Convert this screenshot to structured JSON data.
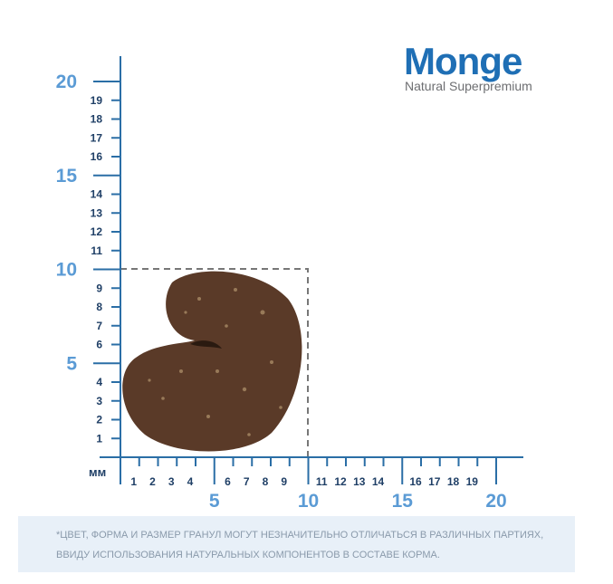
{
  "logo": {
    "brand": "Monge",
    "tagline": "Natural Superpremium"
  },
  "ruler": {
    "unit": "мм",
    "x_minor": [
      1,
      2,
      3,
      4,
      6,
      7,
      8,
      9,
      11,
      12,
      13,
      14,
      16,
      17,
      18,
      19
    ],
    "x_major": [
      5,
      10,
      15,
      20
    ],
    "y_minor": [
      1,
      2,
      3,
      4,
      6,
      7,
      8,
      9,
      11,
      12,
      13,
      14,
      16,
      17,
      18,
      19
    ],
    "y_major": [
      5,
      10,
      15,
      20
    ]
  },
  "note": {
    "lines": [
      "*ЦВЕТ, ФОРМА И РАЗМЕР ГРАНУЛ МОГУТ НЕЗНАЧИТЕЛЬНО ОТЛИЧАТЬСЯ В РАЗЛИЧНЫХ ПАРТИЯХ,",
      "ВВИДУ ИСПОЛЬЗОВАНИЯ НАТУРАЛЬНЫХ КОМПОНЕНТОВ В СОСТАВЕ КОРМА."
    ]
  }
}
